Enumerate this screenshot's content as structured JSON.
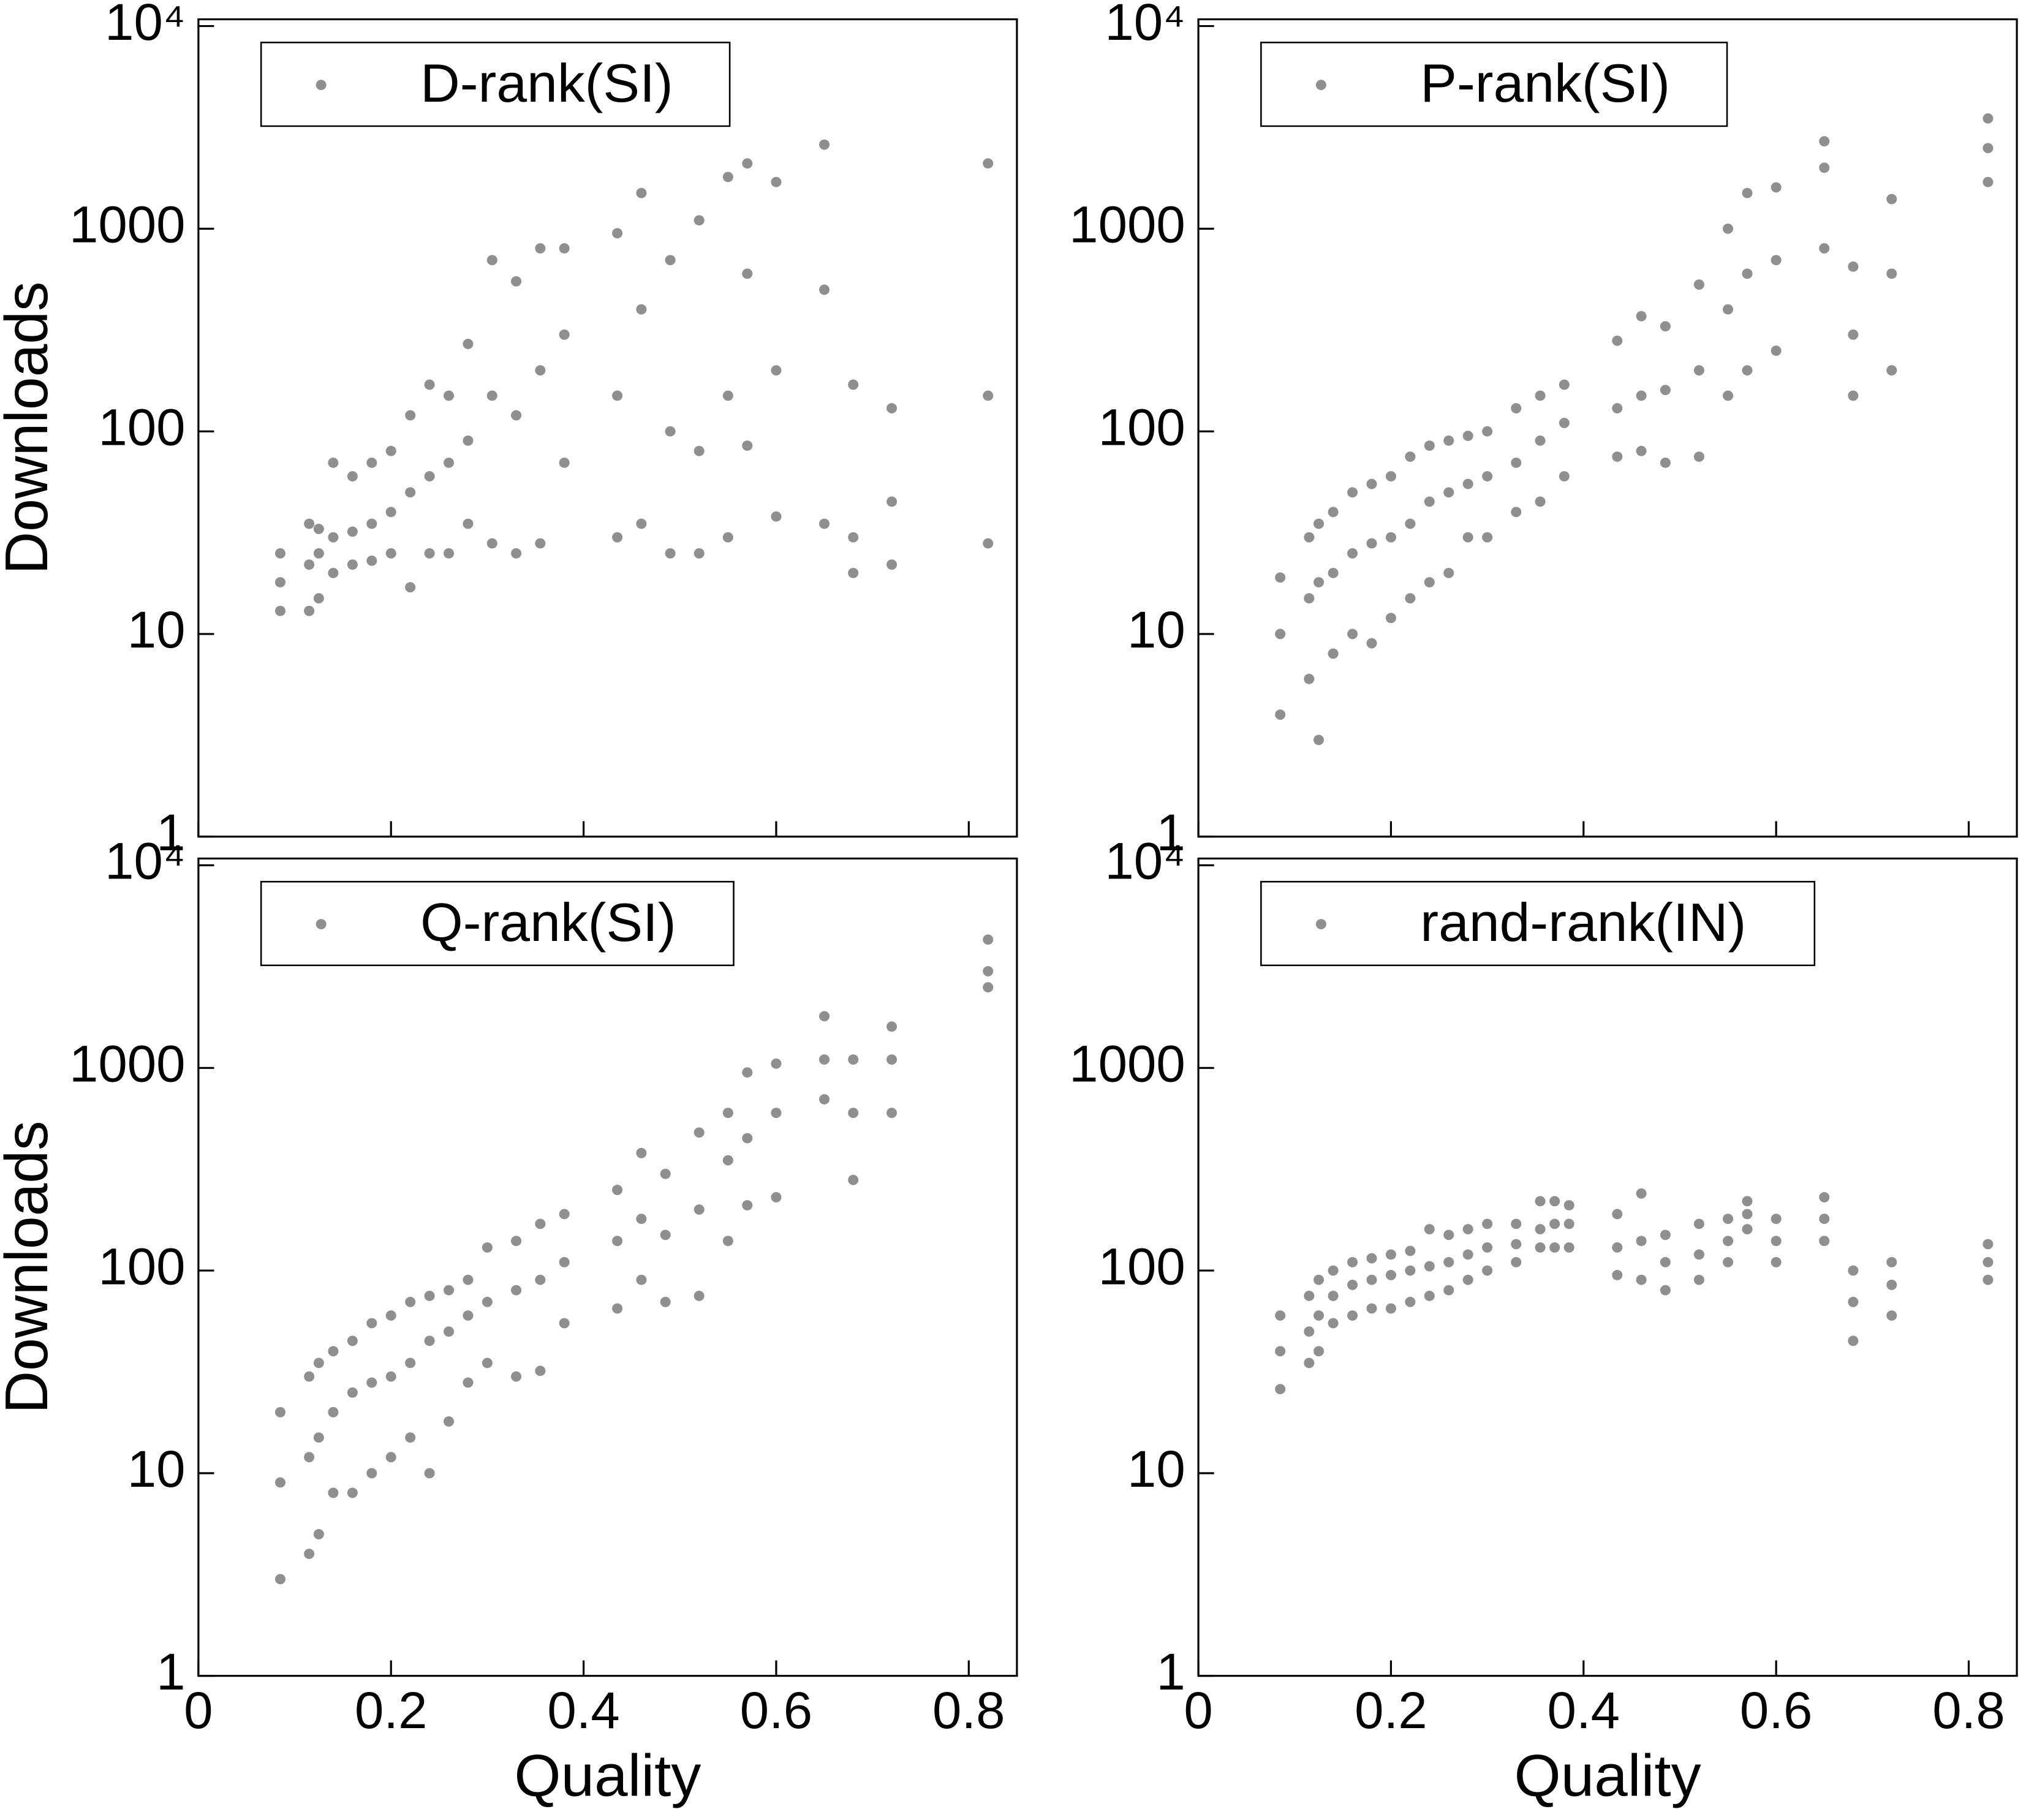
{
  "chart_data": [
    {
      "type": "scatter",
      "ylabel": "Downloads",
      "y_scale": "log",
      "legend": "upper left",
      "xlim": [
        0,
        0.85
      ],
      "xticks": [
        0,
        0.2,
        0.4,
        0.6,
        0.8
      ],
      "ylim": [
        1,
        10800
      ],
      "yticks": [
        1,
        10,
        100,
        1000,
        {
          "value": 10000,
          "label": "10⁴"
        }
      ],
      "x": [
        0.085,
        0.085,
        0.085,
        0.115,
        0.115,
        0.115,
        0.125,
        0.125,
        0.125,
        0.14,
        0.14,
        0.14,
        0.16,
        0.16,
        0.16,
        0.18,
        0.18,
        0.18,
        0.2,
        0.2,
        0.2,
        0.22,
        0.22,
        0.22,
        0.24,
        0.24,
        0.24,
        0.26,
        0.26,
        0.26,
        0.28,
        0.28,
        0.28,
        0.305,
        0.305,
        0.305,
        0.33,
        0.33,
        0.33,
        0.355,
        0.355,
        0.355,
        0.38,
        0.38,
        0.38,
        0.435,
        0.435,
        0.435,
        0.46,
        0.46,
        0.46,
        0.49,
        0.49,
        0.49,
        0.52,
        0.52,
        0.52,
        0.55,
        0.55,
        0.55,
        0.57,
        0.57,
        0.57,
        0.6,
        0.6,
        0.6,
        0.65,
        0.65,
        0.65,
        0.68,
        0.68,
        0.68,
        0.72,
        0.72,
        0.72,
        0.82,
        0.82,
        0.82
      ],
      "series": [
        {
          "name": "D-rank(SI)",
          "color": "#444444",
          "values": [
            13,
            18,
            25,
            13,
            22,
            35,
            15,
            25,
            33,
            20,
            30,
            70,
            22,
            32,
            60,
            23,
            35,
            70,
            25,
            40,
            80,
            17,
            50,
            120,
            25,
            60,
            170,
            25,
            70,
            150,
            35,
            90,
            270,
            28,
            150,
            700,
            25,
            120,
            550,
            28,
            200,
            800,
            70,
            300,
            800,
            30,
            150,
            950,
            35,
            400,
            1500,
            25,
            100,
            700,
            25,
            80,
            1100,
            30,
            150,
            1800,
            85,
            600,
            2100,
            38,
            200,
            1700,
            35,
            500,
            2600,
            20,
            30,
            170,
            22,
            45,
            130,
            28,
            150,
            2100
          ]
        }
      ]
    },
    {
      "type": "scatter",
      "y_scale": "log",
      "legend": "upper left",
      "xlim": [
        0,
        0.85
      ],
      "xticks": [
        0,
        0.2,
        0.4,
        0.6,
        0.8
      ],
      "ylim": [
        1,
        10800
      ],
      "yticks": [
        1,
        10,
        100,
        1000,
        {
          "value": 10000,
          "label": "10⁴"
        }
      ],
      "x": [
        0.085,
        0.085,
        0.085,
        0.115,
        0.115,
        0.115,
        0.125,
        0.125,
        0.125,
        0.14,
        0.14,
        0.14,
        0.16,
        0.16,
        0.16,
        0.18,
        0.18,
        0.18,
        0.2,
        0.2,
        0.2,
        0.22,
        0.22,
        0.22,
        0.24,
        0.24,
        0.24,
        0.26,
        0.26,
        0.26,
        0.28,
        0.28,
        0.28,
        0.3,
        0.3,
        0.3,
        0.33,
        0.33,
        0.33,
        0.355,
        0.355,
        0.355,
        0.38,
        0.38,
        0.38,
        0.435,
        0.435,
        0.435,
        0.46,
        0.46,
        0.46,
        0.485,
        0.485,
        0.485,
        0.52,
        0.52,
        0.52,
        0.55,
        0.55,
        0.55,
        0.57,
        0.57,
        0.57,
        0.6,
        0.6,
        0.6,
        0.65,
        0.65,
        0.65,
        0.68,
        0.68,
        0.68,
        0.72,
        0.72,
        0.72,
        0.82,
        0.82,
        0.82
      ],
      "series": [
        {
          "name": "P-rank(SI)",
          "color": "#444444",
          "values": [
            4,
            10,
            19,
            6,
            15,
            30,
            3,
            18,
            35,
            8,
            20,
            40,
            10,
            25,
            50,
            9,
            28,
            55,
            12,
            30,
            60,
            15,
            35,
            75,
            18,
            45,
            85,
            20,
            50,
            90,
            30,
            55,
            95,
            30,
            60,
            100,
            40,
            70,
            130,
            45,
            90,
            150,
            60,
            110,
            170,
            75,
            130,
            280,
            80,
            150,
            370,
            70,
            160,
            330,
            75,
            200,
            530,
            150,
            400,
            1000,
            200,
            600,
            1500,
            250,
            700,
            1600,
            800,
            2000,
            2700,
            150,
            300,
            650,
            200,
            600,
            1400,
            1700,
            2500,
            3500
          ]
        }
      ]
    },
    {
      "type": "scatter",
      "ylabel": "Downloads",
      "xlabel": "Quality",
      "y_scale": "log",
      "legend": "upper left",
      "xlim": [
        0,
        0.85
      ],
      "xticks": [
        0,
        0.2,
        0.4,
        0.6,
        0.8
      ],
      "ylim": [
        1,
        10800
      ],
      "yticks": [
        1,
        10,
        100,
        1000,
        {
          "value": 10000,
          "label": "10⁴"
        }
      ],
      "x": [
        0.085,
        0.085,
        0.085,
        0.115,
        0.115,
        0.115,
        0.125,
        0.125,
        0.125,
        0.14,
        0.14,
        0.14,
        0.16,
        0.16,
        0.16,
        0.18,
        0.18,
        0.18,
        0.2,
        0.2,
        0.2,
        0.22,
        0.22,
        0.22,
        0.24,
        0.24,
        0.24,
        0.26,
        0.26,
        0.26,
        0.28,
        0.28,
        0.28,
        0.3,
        0.3,
        0.3,
        0.33,
        0.33,
        0.33,
        0.355,
        0.355,
        0.355,
        0.38,
        0.38,
        0.38,
        0.435,
        0.435,
        0.435,
        0.46,
        0.46,
        0.46,
        0.485,
        0.485,
        0.485,
        0.52,
        0.52,
        0.52,
        0.55,
        0.55,
        0.55,
        0.57,
        0.57,
        0.57,
        0.6,
        0.6,
        0.6,
        0.65,
        0.65,
        0.65,
        0.68,
        0.68,
        0.68,
        0.72,
        0.72,
        0.72,
        0.82,
        0.82,
        0.82
      ],
      "series": [
        {
          "name": "Q-rank(SI)",
          "color": "#444444",
          "values": [
            3,
            9,
            20,
            4,
            12,
            30,
            5,
            15,
            35,
            8,
            20,
            40,
            8,
            25,
            45,
            10,
            28,
            55,
            12,
            30,
            60,
            15,
            35,
            70,
            10,
            45,
            75,
            18,
            50,
            80,
            28,
            60,
            90,
            35,
            70,
            130,
            30,
            80,
            140,
            32,
            90,
            170,
            55,
            110,
            190,
            65,
            140,
            250,
            90,
            180,
            380,
            70,
            150,
            300,
            75,
            200,
            480,
            140,
            350,
            600,
            210,
            450,
            950,
            230,
            600,
            1050,
            700,
            1100,
            1800,
            280,
            600,
            1100,
            600,
            1100,
            1600,
            2500,
            3000,
            4300
          ]
        }
      ]
    },
    {
      "type": "scatter",
      "xlabel": "Quality",
      "y_scale": "log",
      "legend": "upper left",
      "xlim": [
        0,
        0.85
      ],
      "xticks": [
        0,
        0.2,
        0.4,
        0.6,
        0.8
      ],
      "ylim": [
        1,
        10800
      ],
      "yticks": [
        1,
        10,
        100,
        1000,
        {
          "value": 10000,
          "label": "10⁴"
        }
      ],
      "x": [
        0.085,
        0.085,
        0.085,
        0.115,
        0.115,
        0.115,
        0.125,
        0.125,
        0.125,
        0.14,
        0.14,
        0.14,
        0.16,
        0.16,
        0.16,
        0.18,
        0.18,
        0.18,
        0.2,
        0.2,
        0.2,
        0.22,
        0.22,
        0.22,
        0.24,
        0.24,
        0.24,
        0.26,
        0.26,
        0.26,
        0.28,
        0.28,
        0.28,
        0.3,
        0.3,
        0.3,
        0.33,
        0.33,
        0.33,
        0.355,
        0.355,
        0.355,
        0.37,
        0.37,
        0.37,
        0.385,
        0.385,
        0.385,
        0.435,
        0.435,
        0.435,
        0.46,
        0.46,
        0.46,
        0.485,
        0.485,
        0.485,
        0.52,
        0.52,
        0.52,
        0.55,
        0.55,
        0.55,
        0.57,
        0.57,
        0.57,
        0.6,
        0.6,
        0.6,
        0.65,
        0.65,
        0.65,
        0.68,
        0.68,
        0.68,
        0.72,
        0.72,
        0.72,
        0.82,
        0.82,
        0.82
      ],
      "series": [
        {
          "name": "rand-rank(IN)",
          "color": "#444444",
          "values": [
            26,
            40,
            60,
            35,
            50,
            75,
            40,
            60,
            90,
            55,
            75,
            100,
            60,
            85,
            110,
            65,
            90,
            115,
            65,
            95,
            120,
            70,
            100,
            125,
            75,
            105,
            160,
            80,
            110,
            150,
            90,
            120,
            160,
            100,
            130,
            170,
            110,
            135,
            170,
            130,
            160,
            220,
            130,
            170,
            220,
            130,
            170,
            210,
            95,
            130,
            190,
            90,
            140,
            240,
            80,
            110,
            150,
            90,
            120,
            170,
            110,
            140,
            180,
            160,
            190,
            220,
            110,
            140,
            180,
            140,
            180,
            230,
            45,
            70,
            100,
            60,
            85,
            110,
            90,
            110,
            135
          ]
        }
      ]
    }
  ]
}
